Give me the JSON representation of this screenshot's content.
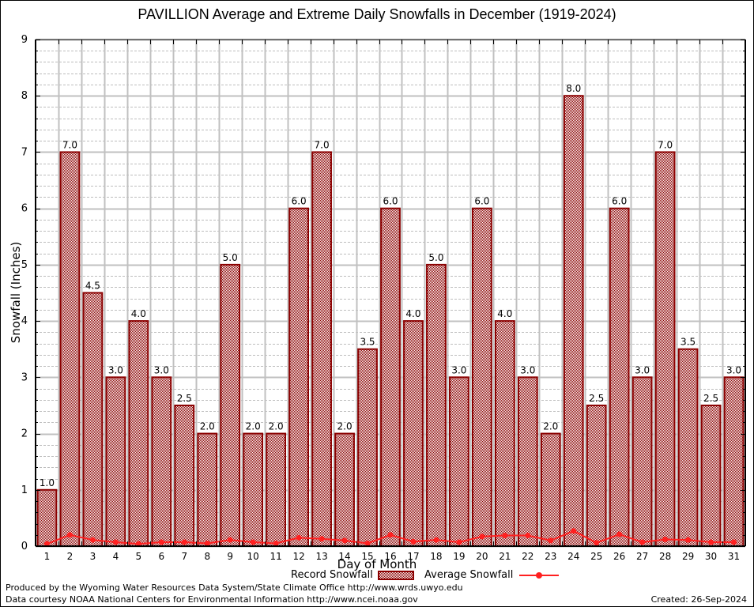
{
  "chart_data": {
    "type": "bar",
    "title": "PAVILLION Average and Extreme Daily Snowfalls in December (1919-2024)",
    "xlabel": "Day of Month",
    "ylabel": "Snowfall (Inches)",
    "ylim": [
      0,
      9
    ],
    "yticks": [
      0,
      1,
      2,
      3,
      4,
      5,
      6,
      7,
      8,
      9
    ],
    "grid": true,
    "categories": [
      "1",
      "2",
      "3",
      "4",
      "5",
      "6",
      "7",
      "8",
      "9",
      "10",
      "11",
      "12",
      "13",
      "14",
      "15",
      "16",
      "17",
      "18",
      "19",
      "20",
      "21",
      "22",
      "23",
      "24",
      "25",
      "26",
      "27",
      "28",
      "29",
      "30",
      "31"
    ],
    "series": [
      {
        "name": "Record Snowfall",
        "type": "bar",
        "color": "#8b0000",
        "values": [
          1.0,
          7.0,
          4.5,
          3.0,
          4.0,
          3.0,
          2.5,
          2.0,
          5.0,
          2.0,
          2.0,
          6.0,
          7.0,
          2.0,
          3.5,
          6.0,
          4.0,
          5.0,
          3.0,
          6.0,
          4.0,
          3.0,
          2.0,
          8.0,
          2.5,
          6.0,
          3.0,
          7.0,
          3.5,
          2.5,
          3.0
        ],
        "labels": [
          "1.0",
          "7.0",
          "4.5",
          "3.0",
          "4.0",
          "3.0",
          "2.5",
          "2.0",
          "5.0",
          "2.0",
          "2.0",
          "6.0",
          "7.0",
          "2.0",
          "3.5",
          "6.0",
          "4.0",
          "5.0",
          "3.0",
          "6.0",
          "4.0",
          "3.0",
          "2.0",
          "8.0",
          "2.5",
          "6.0",
          "3.0",
          "7.0",
          "3.5",
          "2.5",
          "3.0"
        ]
      },
      {
        "name": "Average Snowfall",
        "type": "line",
        "color": "#ff2020",
        "values": [
          0.04,
          0.2,
          0.11,
          0.07,
          0.04,
          0.07,
          0.07,
          0.05,
          0.11,
          0.07,
          0.05,
          0.15,
          0.13,
          0.1,
          0.05,
          0.2,
          0.08,
          0.11,
          0.07,
          0.17,
          0.19,
          0.19,
          0.1,
          0.27,
          0.06,
          0.21,
          0.07,
          0.12,
          0.11,
          0.07,
          0.07
        ]
      }
    ],
    "legend": {
      "position": "bottom-center",
      "entries": [
        "Record Snowfall",
        "Average Snowfall"
      ]
    }
  },
  "footer": {
    "produced_by": "Produced by the Wyoming Water Resources Data System/State Climate Office http://www.wrds.uwyo.edu",
    "data_courtesy": "Data courtesy NOAA National Centers for Environmental Information http://www.ncei.noaa.gov",
    "created": "Created: 26-Sep-2024"
  }
}
